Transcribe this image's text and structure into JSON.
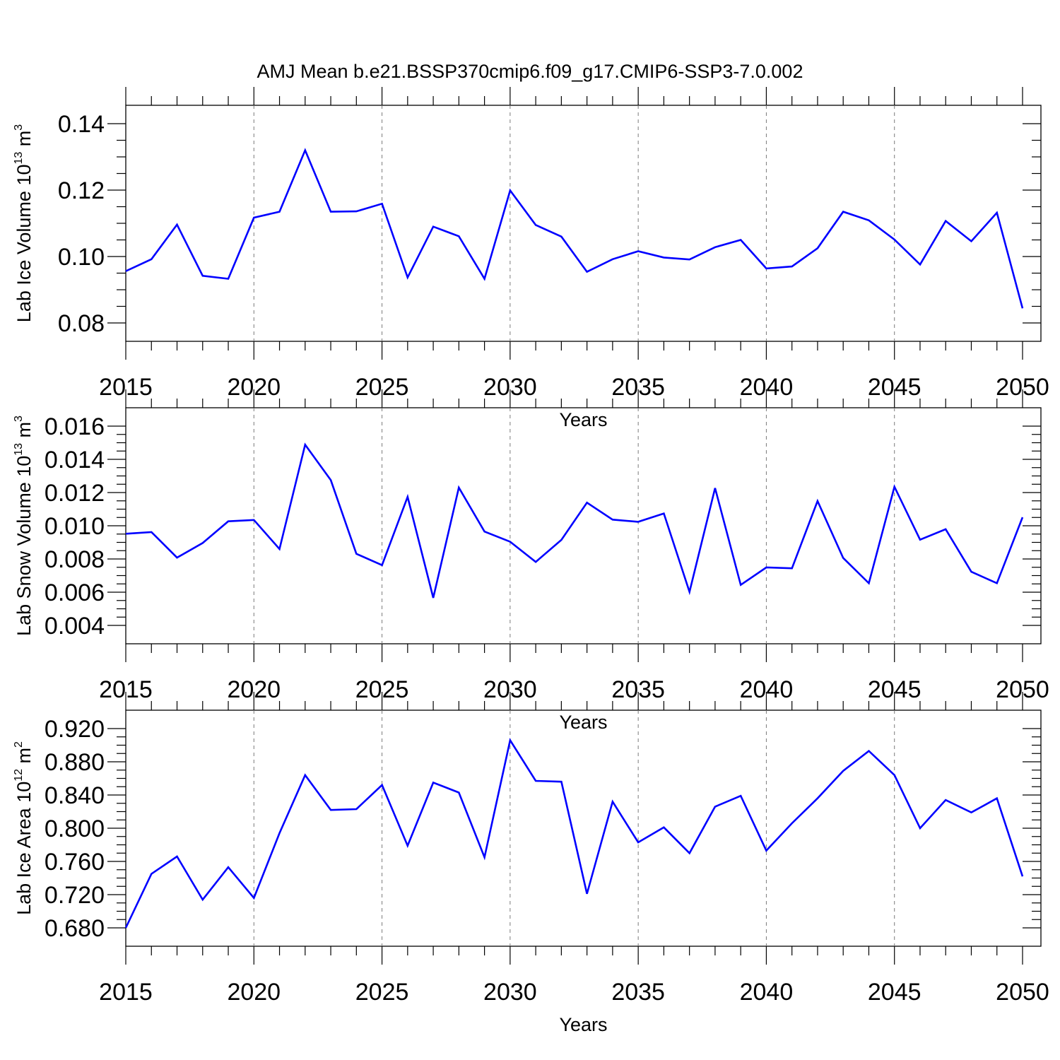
{
  "title": "AMJ Mean b.e21.BSSP370cmip6.f09_g17.CMIP6-SSP3-7.0.002",
  "chart_data": [
    {
      "type": "line",
      "ylabel": {
        "base": "Lab Ice Volume 10",
        "exp": "13",
        "unit": " m",
        "unit_exp": "3"
      },
      "xlabel": "Years",
      "xlim": [
        2015,
        2050
      ],
      "ylim": [
        0.08,
        0.14
      ],
      "x_ticks": [
        "2015",
        "2020",
        "2025",
        "2030",
        "2035",
        "2040",
        "2045",
        "2050"
      ],
      "y_ticks": [
        "0.08",
        "0.10",
        "0.12",
        "0.14"
      ],
      "y_minor_step": 0.005,
      "grid": "vertical-dashed",
      "color": "#0000ff",
      "x": [
        2015,
        2016,
        2017,
        2018,
        2019,
        2020,
        2021,
        2022,
        2023,
        2024,
        2025,
        2026,
        2027,
        2028,
        2029,
        2030,
        2031,
        2032,
        2033,
        2034,
        2035,
        2036,
        2037,
        2038,
        2039,
        2040,
        2041,
        2042,
        2043,
        2044,
        2045,
        2046,
        2047,
        2048,
        2049,
        2050
      ],
      "values": [
        0.0956,
        0.0992,
        0.1096,
        0.0942,
        0.0933,
        0.1117,
        0.1135,
        0.132,
        0.1135,
        0.1136,
        0.1159,
        0.0937,
        0.109,
        0.1061,
        0.0933,
        0.1199,
        0.1095,
        0.106,
        0.0954,
        0.0992,
        0.1016,
        0.0997,
        0.0991,
        0.1028,
        0.105,
        0.0964,
        0.097,
        0.1025,
        0.1135,
        0.1109,
        0.1051,
        0.0976,
        0.1107,
        0.1046,
        0.1132,
        0.0844
      ]
    },
    {
      "type": "line",
      "ylabel": {
        "base": "Lab Snow Volume 10",
        "exp": "13",
        "unit": " m",
        "unit_exp": "3"
      },
      "xlabel": "Years",
      "xlim": [
        2015,
        2050
      ],
      "ylim": [
        0.004,
        0.016
      ],
      "x_ticks": [
        "2015",
        "2020",
        "2025",
        "2030",
        "2035",
        "2040",
        "2045",
        "2050"
      ],
      "y_ticks": [
        "0.004",
        "0.006",
        "0.008",
        "0.010",
        "0.012",
        "0.014",
        "0.016"
      ],
      "y_minor_step": 0.0005,
      "grid": "vertical-dashed",
      "color": "#0000ff",
      "x": [
        2015,
        2016,
        2017,
        2018,
        2019,
        2020,
        2021,
        2022,
        2023,
        2024,
        2025,
        2026,
        2027,
        2028,
        2029,
        2030,
        2031,
        2032,
        2033,
        2034,
        2035,
        2036,
        2037,
        2038,
        2039,
        2040,
        2041,
        2042,
        2043,
        2044,
        2045,
        2046,
        2047,
        2048,
        2049,
        2050
      ],
      "values": [
        0.00952,
        0.00962,
        0.00808,
        0.00896,
        0.01027,
        0.01035,
        0.0086,
        0.01488,
        0.01275,
        0.00831,
        0.00763,
        0.01174,
        0.00566,
        0.0123,
        0.00965,
        0.00904,
        0.00782,
        0.00915,
        0.01139,
        0.01037,
        0.01024,
        0.01074,
        0.00602,
        0.01227,
        0.00644,
        0.00749,
        0.00744,
        0.01149,
        0.00806,
        0.00654,
        0.01235,
        0.00916,
        0.00979,
        0.00723,
        0.00654,
        0.01051
      ]
    },
    {
      "type": "line",
      "ylabel": {
        "base": "Lab Ice Area 10",
        "exp": "12",
        "unit": " m",
        "unit_exp": "2"
      },
      "xlabel": "Years",
      "xlim": [
        2015,
        2050
      ],
      "ylim": [
        0.68,
        0.92
      ],
      "x_ticks": [
        "2015",
        "2020",
        "2025",
        "2030",
        "2035",
        "2040",
        "2045",
        "2050"
      ],
      "y_ticks": [
        "0.680",
        "0.720",
        "0.760",
        "0.800",
        "0.840",
        "0.880",
        "0.920"
      ],
      "y_minor_step": 0.01,
      "grid": "vertical-dashed",
      "color": "#0000ff",
      "x": [
        2015,
        2016,
        2017,
        2018,
        2019,
        2020,
        2021,
        2022,
        2023,
        2024,
        2025,
        2026,
        2027,
        2028,
        2029,
        2030,
        2031,
        2032,
        2033,
        2034,
        2035,
        2036,
        2037,
        2038,
        2039,
        2040,
        2041,
        2042,
        2043,
        2044,
        2045,
        2046,
        2047,
        2048,
        2049,
        2050
      ],
      "values": [
        0.68,
        0.745,
        0.766,
        0.714,
        0.753,
        0.716,
        0.794,
        0.864,
        0.822,
        0.823,
        0.852,
        0.779,
        0.855,
        0.843,
        0.765,
        0.906,
        0.857,
        0.856,
        0.721,
        0.832,
        0.783,
        0.801,
        0.77,
        0.826,
        0.839,
        0.773,
        0.806,
        0.836,
        0.869,
        0.893,
        0.864,
        0.8,
        0.834,
        0.819,
        0.836,
        0.742
      ]
    }
  ]
}
